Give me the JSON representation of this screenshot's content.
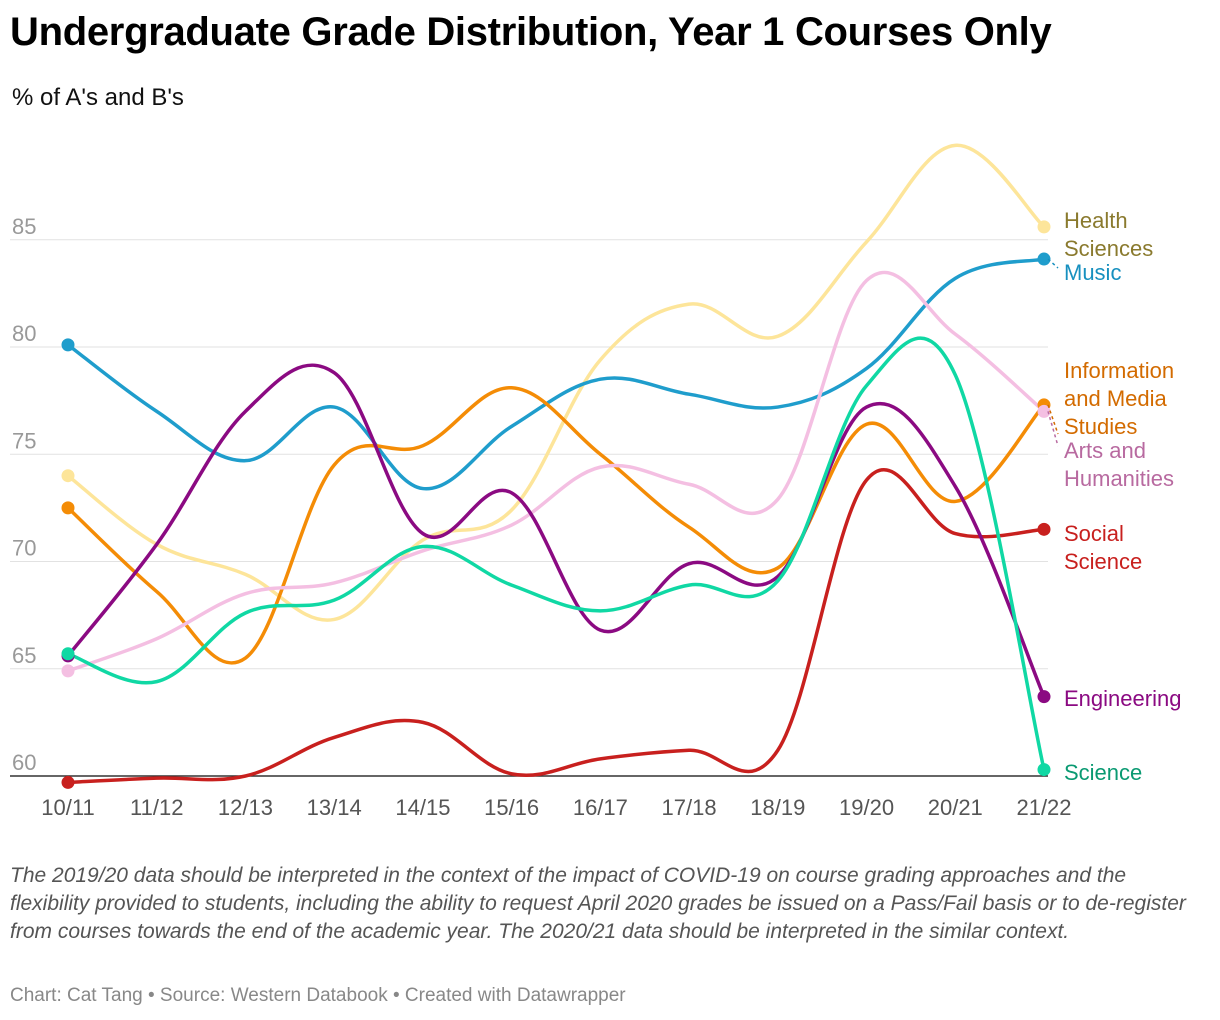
{
  "header": {
    "title": "Undergraduate Grade Distribution, Year 1 Courses Only",
    "subtitle": "% of A's and B's"
  },
  "footer": {
    "note": "The 2019/20 data should be interpreted in the context of the impact of COVID-19 on course grading approaches and the flexibility provided to students, including the ability to request April 2020 grades be issued on a Pass/Fail basis or to de-register from courses towards the end of the academic year. The 2020/21 data should be interpreted in the similar context.",
    "credit": "Chart: Cat Tang • Source: Western Databook • Created with Datawrapper"
  },
  "chart_data": {
    "type": "line",
    "title": "Undergraduate Grade Distribution, Year 1 Courses Only",
    "ylabel": "% of A's and B's",
    "xlabel": "",
    "categories": [
      "10/11",
      "11/12",
      "12/13",
      "13/14",
      "14/15",
      "15/16",
      "16/17",
      "17/18",
      "18/19",
      "19/20",
      "20/21",
      "21/22"
    ],
    "ylim": [
      60,
      90
    ],
    "yticks": [
      60,
      65,
      70,
      75,
      80,
      85
    ],
    "grid": true,
    "series": [
      {
        "name": "Health Sciences",
        "label_lines": [
          "Health",
          "Sciences"
        ],
        "color": "#fde59a",
        "label_color": "#8a7a2e",
        "values": [
          74.0,
          70.8,
          69.4,
          67.3,
          71.0,
          72.4,
          79.4,
          82.0,
          80.5,
          84.9,
          89.4,
          85.6
        ]
      },
      {
        "name": "Music",
        "label_lines": [
          "Music"
        ],
        "color": "#1f9dcc",
        "label_color": "#1790bf",
        "values": [
          80.1,
          77.0,
          74.7,
          77.2,
          73.4,
          76.3,
          78.5,
          77.8,
          77.2,
          79.0,
          83.2,
          84.1
        ]
      },
      {
        "name": "Information and Media Studies",
        "label_lines": [
          "Information",
          "and Media",
          "Studies"
        ],
        "color": "#f48c06",
        "label_color": "#d36b00",
        "values": [
          72.5,
          68.6,
          65.5,
          74.5,
          75.4,
          78.1,
          75.0,
          71.6,
          69.7,
          76.4,
          72.8,
          77.3
        ]
      },
      {
        "name": "Arts and Humanities",
        "label_lines": [
          "Arts and",
          "Humanities"
        ],
        "color": "#f4bfe2",
        "label_color": "#b86aa0",
        "values": [
          64.9,
          66.4,
          68.5,
          69.0,
          70.5,
          71.7,
          74.4,
          73.6,
          72.9,
          83.1,
          80.6,
          77.0
        ]
      },
      {
        "name": "Social Science",
        "label_lines": [
          "Social",
          "Science"
        ],
        "color": "#c8201e",
        "label_color": "#c8201e",
        "values": [
          59.7,
          59.9,
          60.0,
          61.8,
          62.5,
          60.1,
          60.8,
          61.2,
          61.2,
          73.8,
          71.3,
          71.5
        ]
      },
      {
        "name": "Engineering",
        "label_lines": [
          "Engineering"
        ],
        "color": "#8b0a82",
        "label_color": "#8b0a82",
        "values": [
          65.6,
          70.8,
          77.0,
          78.8,
          71.3,
          73.2,
          66.8,
          69.9,
          69.3,
          77.2,
          73.5,
          63.7
        ]
      },
      {
        "name": "Science",
        "label_lines": [
          "Science"
        ],
        "color": "#10d8a4",
        "label_color": "#0a9a72",
        "values": [
          65.7,
          64.4,
          67.6,
          68.2,
          70.7,
          68.9,
          67.7,
          68.9,
          69.1,
          78.2,
          78.7,
          60.3
        ]
      }
    ]
  }
}
